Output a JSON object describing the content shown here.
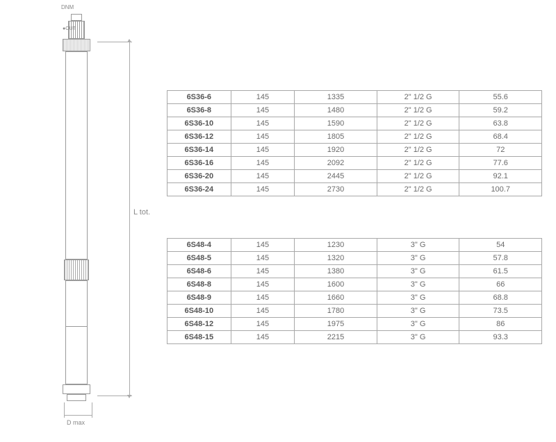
{
  "diagram": {
    "dnm_label": "DNM",
    "out_label": "●OUT",
    "ltot_label": "L tot.",
    "dmax_label": "D max"
  },
  "table1": {
    "rows": [
      {
        "model": "6S36-6",
        "c2": "145",
        "c3": "1335",
        "c4": "2\" 1/2 G",
        "c5": "55.6"
      },
      {
        "model": "6S36-8",
        "c2": "145",
        "c3": "1480",
        "c4": "2\" 1/2 G",
        "c5": "59.2"
      },
      {
        "model": "6S36-10",
        "c2": "145",
        "c3": "1590",
        "c4": "2\" 1/2 G",
        "c5": "63.8"
      },
      {
        "model": "6S36-12",
        "c2": "145",
        "c3": "1805",
        "c4": "2\" 1/2 G",
        "c5": "68.4"
      },
      {
        "model": "6S36-14",
        "c2": "145",
        "c3": "1920",
        "c4": "2\" 1/2 G",
        "c5": "72"
      },
      {
        "model": "6S36-16",
        "c2": "145",
        "c3": "2092",
        "c4": "2\" 1/2 G",
        "c5": "77.6"
      },
      {
        "model": "6S36-20",
        "c2": "145",
        "c3": "2445",
        "c4": "2\" 1/2 G",
        "c5": "92.1"
      },
      {
        "model": "6S36-24",
        "c2": "145",
        "c3": "2730",
        "c4": "2\" 1/2 G",
        "c5": "100.7"
      }
    ]
  },
  "table2": {
    "rows": [
      {
        "model": "6S48-4",
        "c2": "145",
        "c3": "1230",
        "c4": "3\" G",
        "c5": "54"
      },
      {
        "model": "6S48-5",
        "c2": "145",
        "c3": "1320",
        "c4": "3\" G",
        "c5": "57.8"
      },
      {
        "model": "6S48-6",
        "c2": "145",
        "c3": "1380",
        "c4": "3\" G",
        "c5": "61.5"
      },
      {
        "model": "6S48-8",
        "c2": "145",
        "c3": "1600",
        "c4": "3\" G",
        "c5": "66"
      },
      {
        "model": "6S48-9",
        "c2": "145",
        "c3": "1660",
        "c4": "3\" G",
        "c5": "68.8"
      },
      {
        "model": "6S48-10",
        "c2": "145",
        "c3": "1780",
        "c4": "3\" G",
        "c5": "73.5"
      },
      {
        "model": "6S48-12",
        "c2": "145",
        "c3": "1975",
        "c4": "3\" G",
        "c5": "86"
      },
      {
        "model": "6S48-15",
        "c2": "145",
        "c3": "2215",
        "c4": "3\" G",
        "c5": "93.3"
      }
    ]
  }
}
